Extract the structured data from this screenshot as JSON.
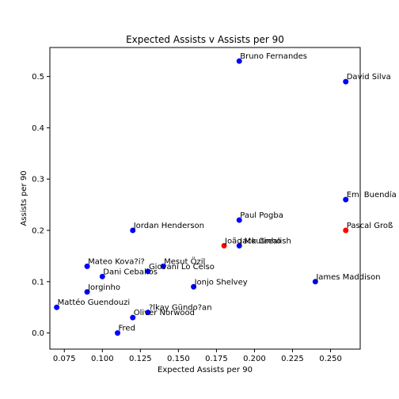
{
  "chart_data": {
    "type": "scatter",
    "title": "Expected Assists v  Assists per 90",
    "xlabel": "Expected Assists per 90",
    "ylabel": "Assists per 90",
    "xlim": [
      0.0655,
      0.2695
    ],
    "ylim": [
      -0.0315,
      0.5565
    ],
    "xticks": [
      "0.075",
      "0.100",
      "0.125",
      "0.150",
      "0.175",
      "0.200",
      "0.225",
      "0.250"
    ],
    "xtick_values": [
      0.075,
      0.1,
      0.125,
      0.15,
      0.175,
      0.2,
      0.225,
      0.25
    ],
    "yticks": [
      "0.0",
      "0.1",
      "0.2",
      "0.3",
      "0.4",
      "0.5"
    ],
    "ytick_values": [
      0.0,
      0.1,
      0.2,
      0.3,
      0.4,
      0.5
    ],
    "grid": false,
    "colors": {
      "default": "#0000ff",
      "highlight": "#ff0000"
    },
    "points": [
      {
        "label": "Bruno Fernandes",
        "x": 0.19,
        "y": 0.53,
        "color": "#0000ff"
      },
      {
        "label": "David Silva",
        "x": 0.26,
        "y": 0.49,
        "color": "#0000ff"
      },
      {
        "label": "Emi Buendía",
        "x": 0.26,
        "y": 0.26,
        "color": "#0000ff"
      },
      {
        "label": "Paul Pogba",
        "x": 0.19,
        "y": 0.22,
        "color": "#0000ff"
      },
      {
        "label": "Pascal Groß",
        "x": 0.26,
        "y": 0.2,
        "color": "#ff0000"
      },
      {
        "label": "Jordan Henderson",
        "x": 0.12,
        "y": 0.2,
        "color": "#0000ff"
      },
      {
        "label": "João Moutinho",
        "x": 0.18,
        "y": 0.17,
        "color": "#ff0000"
      },
      {
        "label": "Jack Grealish",
        "x": 0.19,
        "y": 0.17,
        "color": "#0000ff"
      },
      {
        "label": "Mesut Özil",
        "x": 0.14,
        "y": 0.13,
        "color": "#0000ff"
      },
      {
        "label": "Mateo Kova?i?",
        "x": 0.09,
        "y": 0.13,
        "color": "#0000ff"
      },
      {
        "label": "Giovani Lo Celso",
        "x": 0.13,
        "y": 0.12,
        "color": "#0000ff"
      },
      {
        "label": "Dani Ceballos",
        "x": 0.1,
        "y": 0.11,
        "color": "#0000ff"
      },
      {
        "label": "James Maddison",
        "x": 0.24,
        "y": 0.1,
        "color": "#0000ff"
      },
      {
        "label": "Jonjo Shelvey",
        "x": 0.16,
        "y": 0.09,
        "color": "#0000ff"
      },
      {
        "label": "Jorginho",
        "x": 0.09,
        "y": 0.08,
        "color": "#0000ff"
      },
      {
        "label": "Mattéo Guendouzi",
        "x": 0.07,
        "y": 0.05,
        "color": "#0000ff"
      },
      {
        "label": "?lkay Gündo?an",
        "x": 0.13,
        "y": 0.04,
        "color": "#0000ff"
      },
      {
        "label": "Oliver Norwood",
        "x": 0.12,
        "y": 0.03,
        "color": "#0000ff"
      },
      {
        "label": "Fred",
        "x": 0.11,
        "y": 0.0,
        "color": "#0000ff"
      }
    ]
  }
}
